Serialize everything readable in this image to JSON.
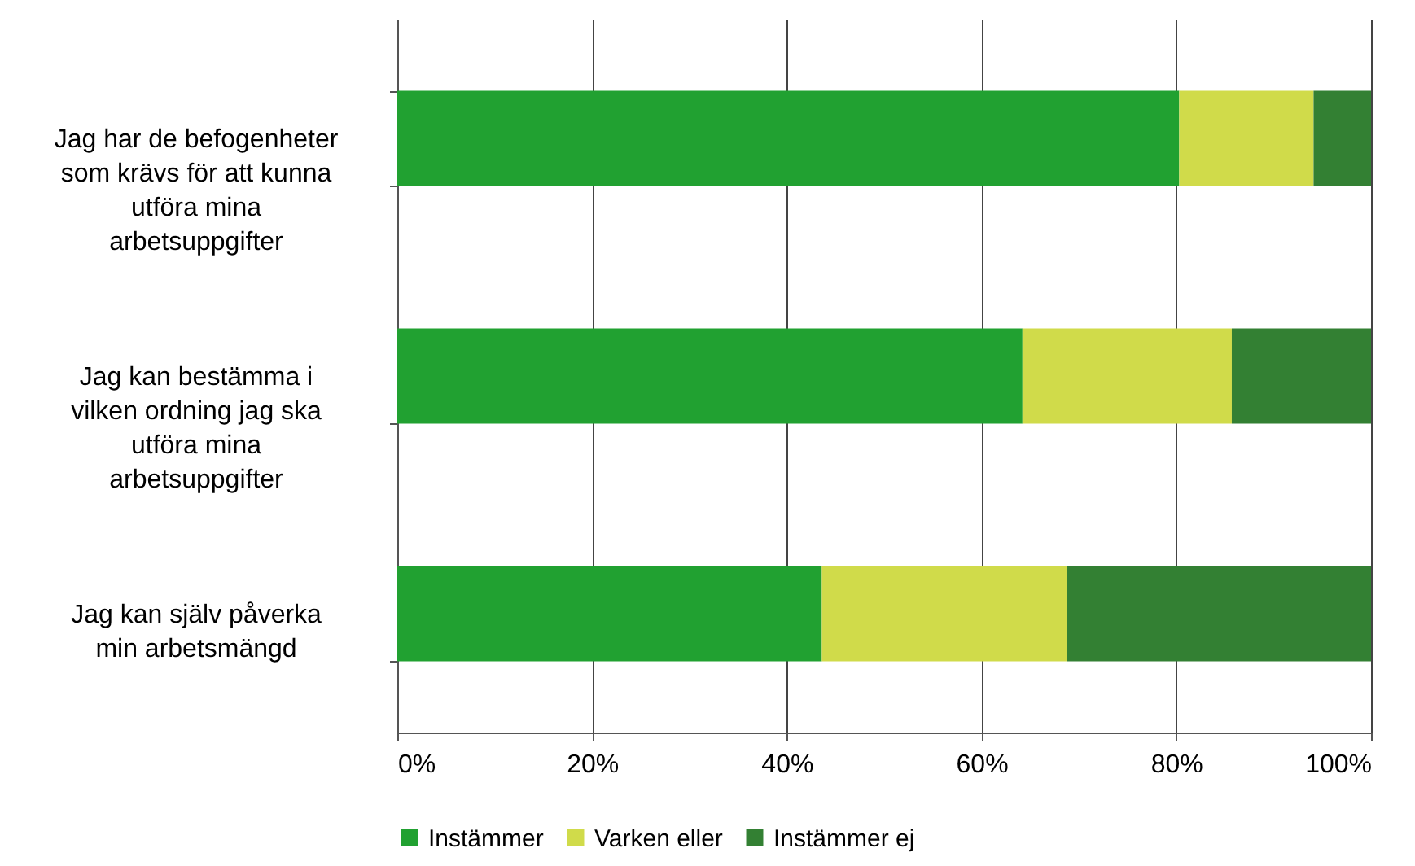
{
  "chart_data": {
    "type": "bar",
    "orientation": "horizontal",
    "stacked": true,
    "categories": [
      "Jag har de befogenheter som krävs för att kunna utföra mina arbetsuppgifter",
      "Jag kan bestämma i vilken ordning jag ska utföra mina arbetsuppgifter",
      "Jag kan själv påverka min arbetsmängd"
    ],
    "series": [
      {
        "name": "Instämmer",
        "color": "#21a131",
        "values": [
          80.3,
          64.2,
          43.6
        ]
      },
      {
        "name": "Varken eller",
        "color": "#d0db4a",
        "values": [
          13.8,
          21.5,
          25.2
        ]
      },
      {
        "name": "Instämmer ej",
        "color": "#338033",
        "values": [
          5.9,
          14.3,
          31.2
        ]
      }
    ],
    "xlim": [
      0,
      100
    ],
    "xticks": [
      {
        "value": 0,
        "label": "0%"
      },
      {
        "value": 20,
        "label": "20%"
      },
      {
        "value": 40,
        "label": "40%"
      },
      {
        "value": 60,
        "label": "60%"
      },
      {
        "value": 80,
        "label": "80%"
      },
      {
        "value": 100,
        "label": "100%"
      }
    ],
    "grid": "x",
    "legend": "bottom"
  }
}
